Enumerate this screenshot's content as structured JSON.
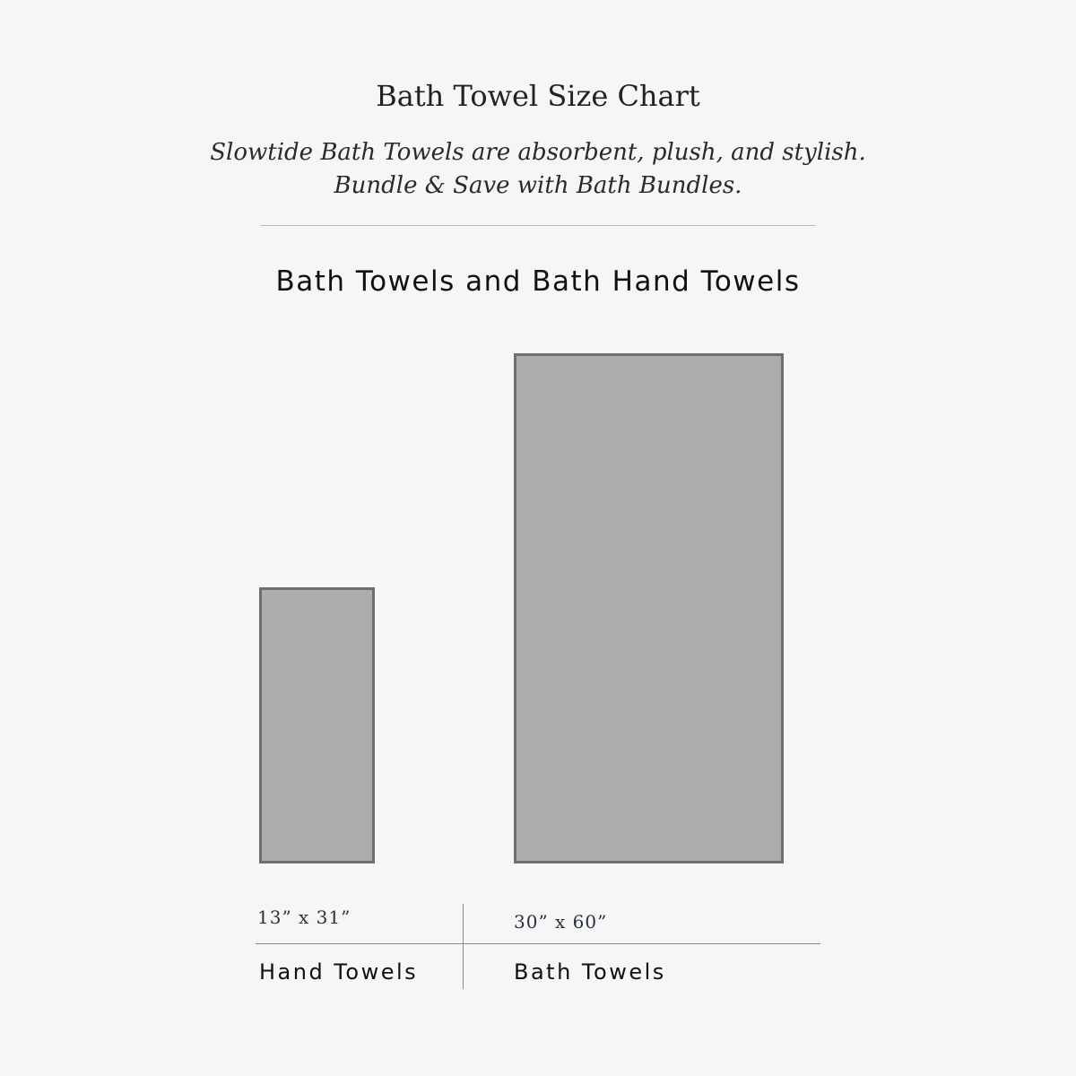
{
  "header": {
    "title": "Bath Towel Size Chart",
    "subtitle_line1": "Slowtide Bath Towels are absorbent, plush, and stylish.",
    "subtitle_line2": "Bundle & Save with Bath Bundles."
  },
  "section_heading": "Bath Towels and Bath Hand Towels",
  "towels": [
    {
      "name": "Hand Towels",
      "dimensions": "13” x 31”",
      "width_in": 13,
      "length_in": 31
    },
    {
      "name": "Bath Towels",
      "dimensions": "30” x 60”",
      "width_in": 30,
      "length_in": 60
    }
  ],
  "colors": {
    "towel_fill": "#adadad",
    "towel_border": "#6e6e6e",
    "background": "#f6f6f6"
  }
}
